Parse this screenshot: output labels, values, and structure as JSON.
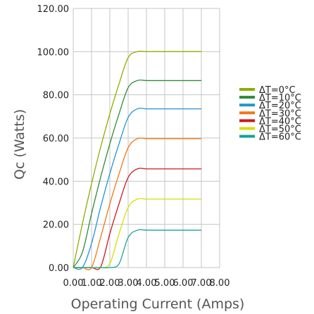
{
  "chart_data": {
    "type": "line",
    "title": "",
    "xlabel": "Operating Current (Amps)",
    "ylabel": "Qc (Watts)",
    "xlim": [
      0,
      8
    ],
    "ylim": [
      0,
      120
    ],
    "x_ticks": [
      "0.00",
      "1.00",
      "2.00",
      "3.00",
      "4.00",
      "5.00",
      "6.00",
      "7.00",
      "8.00"
    ],
    "y_ticks": [
      "0.00",
      "20.00",
      "40.00",
      "60.00",
      "80.00",
      "100.00",
      "120.00"
    ],
    "grid": true,
    "legend_position": "right",
    "x": [
      0,
      0.5,
      1,
      1.5,
      2,
      2.5,
      3,
      3.5,
      4,
      4.5,
      5,
      5.5,
      6,
      6.5,
      7
    ],
    "series": [
      {
        "name": "ΔT=0°C",
        "color": "#8ab000",
        "values": [
          0,
          20.2,
          38.8,
          55.8,
          71.2,
          85.0,
          97.2,
          100.0,
          100.0,
          100.0,
          100.0,
          100.0,
          100.0,
          100.0,
          100.0
        ]
      },
      {
        "name": "ΔT=10°C",
        "color": "#2e8b3a",
        "values": [
          0,
          7.0,
          24.9,
          41.9,
          57.3,
          71.1,
          83.3,
          86.6,
          86.6,
          86.6,
          86.6,
          86.6,
          86.6,
          86.6,
          86.6
        ]
      },
      {
        "name": "ΔT=20°C",
        "color": "#2196d3",
        "values": [
          0,
          0,
          11.1,
          28.1,
          43.5,
          57.3,
          69.5,
          73.5,
          73.5,
          73.5,
          73.5,
          73.5,
          73.5,
          73.5,
          73.5
        ]
      },
      {
        "name": "ΔT=30°C",
        "color": "#f07818",
        "values": [
          0,
          0,
          0,
          14.1,
          29.5,
          43.3,
          55.5,
          59.7,
          59.7,
          59.7,
          59.7,
          59.7,
          59.7,
          59.7,
          59.7
        ]
      },
      {
        "name": "ΔT=40°C",
        "color": "#d01818",
        "values": [
          0,
          0,
          0,
          0.3,
          15.7,
          29.5,
          41.7,
          45.7,
          45.7,
          45.7,
          45.7,
          45.7,
          45.7,
          45.7,
          45.7
        ]
      },
      {
        "name": "ΔT=50°C",
        "color": "#d4e000",
        "values": [
          0,
          0,
          0,
          0,
          1.8,
          15.6,
          27.8,
          31.7,
          31.7,
          31.7,
          31.7,
          31.7,
          31.7,
          31.7,
          31.7
        ]
      },
      {
        "name": "ΔT=60°C",
        "color": "#16a39a",
        "values": [
          0,
          0,
          0,
          0,
          0,
          1.7,
          13.9,
          17.3,
          17.3,
          17.3,
          17.3,
          17.3,
          17.3,
          17.3,
          17.3
        ]
      }
    ]
  }
}
